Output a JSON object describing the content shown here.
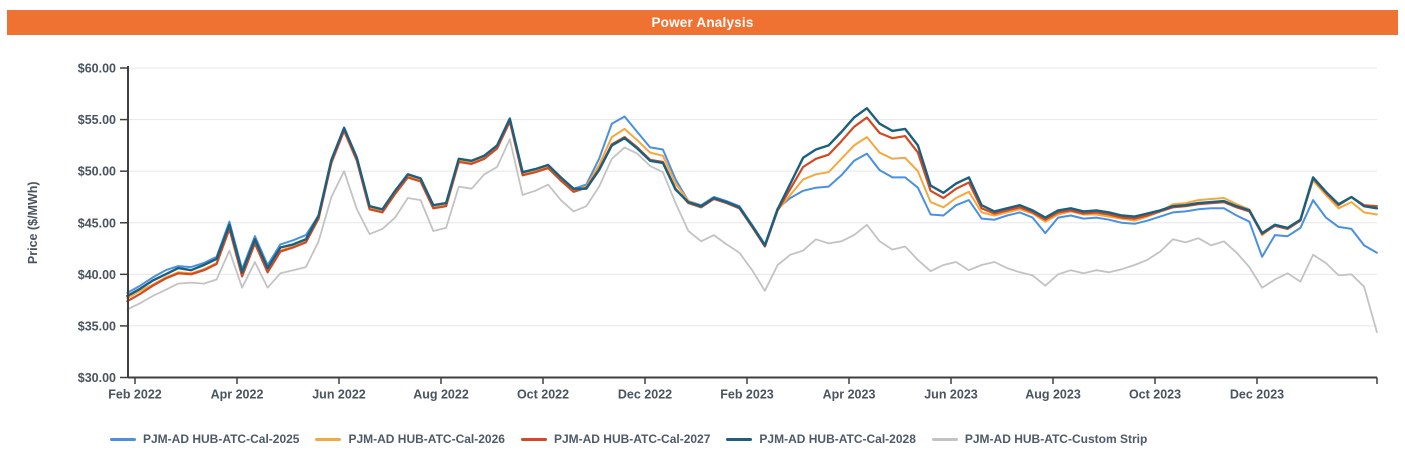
{
  "header": {
    "title": "Power Analysis",
    "background_color": "#ef7233",
    "text_color": "#ffffff"
  },
  "chart_data": {
    "type": "line",
    "title": "Power Analysis",
    "xlabel": "",
    "ylabel": "Price ($/MWh)",
    "ylim": [
      30,
      60
    ],
    "grid": "horizontal",
    "legend_position": "bottom",
    "y_tick_values": [
      60,
      55,
      50,
      45,
      40,
      35,
      30
    ],
    "y_tick_labels": [
      "$60.00",
      "$55.00",
      "$50.00",
      "$45.00",
      "$40.00",
      "$35.00",
      "$30.00"
    ],
    "x_tick_labels": [
      "Feb 2022",
      "Apr 2022",
      "Jun 2022",
      "Aug 2022",
      "Oct 2022",
      "Dec 2022",
      "Feb 2023",
      "Apr 2023",
      "Jun 2023",
      "Aug 2023",
      "Oct 2023",
      "Dec 2023"
    ],
    "x_tick_months": [
      0,
      2,
      4,
      6,
      8,
      10,
      12,
      14,
      16,
      18,
      20,
      22
    ],
    "x_start_month": -0.15,
    "x_step_months": 0.25,
    "x_end_month": 24.35,
    "colors": {
      "axis": "#3f3f3f",
      "gridline": "#e7e7e7",
      "tick_label": "#49545f",
      "axis_title": "#49545f"
    },
    "series": [
      {
        "name": "PJM-AD HUB-ATC-Cal-2025",
        "color": "#4a90e2",
        "width": 2,
        "values": [
          38.2,
          38.9,
          39.7,
          40.4,
          40.8,
          40.7,
          41.1,
          41.7,
          45.1,
          40.5,
          43.7,
          40.9,
          42.9,
          43.3,
          43.8,
          45.7,
          51.1,
          54.1,
          51.2,
          46.6,
          46.3,
          48.1,
          49.7,
          49.3,
          46.7,
          46.9,
          51.2,
          51.0,
          51.5,
          52.5,
          55.1,
          49.9,
          50.2,
          50.6,
          49.4,
          48.3,
          48.7,
          51.2,
          54.6,
          55.3,
          53.8,
          52.3,
          52.1,
          49.2,
          47.1,
          46.7,
          47.5,
          47.1,
          46.6,
          44.8,
          42.9,
          46.4,
          47.4,
          48.1,
          48.4,
          48.5,
          49.6,
          51.0,
          51.7,
          50.1,
          49.4,
          49.4,
          48.4,
          45.8,
          45.7,
          46.7,
          47.2,
          45.4,
          45.3,
          45.7,
          46.0,
          45.5,
          44.0,
          45.5,
          45.7,
          45.4,
          45.5,
          45.3,
          45.0,
          44.9,
          45.2,
          45.6,
          46.0,
          46.1,
          46.3,
          46.4,
          46.4,
          45.7,
          45.1,
          41.7,
          43.8,
          43.7,
          44.5,
          47.2,
          45.5,
          44.6,
          44.4,
          42.8,
          42.1
        ]
      },
      {
        "name": "PJM-AD HUB-ATC-Cal-2026",
        "color": "#f5a83e",
        "width": 2,
        "values": [
          37.7,
          38.4,
          39.0,
          39.7,
          40.2,
          40.1,
          40.5,
          41.1,
          44.5,
          39.9,
          43.1,
          40.3,
          42.3,
          42.7,
          43.2,
          45.5,
          50.9,
          54.0,
          51.1,
          46.4,
          46.1,
          47.9,
          49.5,
          49.1,
          46.5,
          46.7,
          51.0,
          50.8,
          51.3,
          52.3,
          54.9,
          49.7,
          50.0,
          50.4,
          49.2,
          48.1,
          48.5,
          50.6,
          53.3,
          54.1,
          53.0,
          51.8,
          51.5,
          48.8,
          47.1,
          46.6,
          47.4,
          47.0,
          46.5,
          44.7,
          42.8,
          46.2,
          47.7,
          49.2,
          49.7,
          49.9,
          51.2,
          52.5,
          53.3,
          51.8,
          51.2,
          51.3,
          50.0,
          47.0,
          46.5,
          47.4,
          48.0,
          46.0,
          45.7,
          46.0,
          46.3,
          45.9,
          45.1,
          45.8,
          46.1,
          45.8,
          45.8,
          45.6,
          45.4,
          45.2,
          45.6,
          46.1,
          46.8,
          46.9,
          47.2,
          47.3,
          47.4,
          46.8,
          46.3,
          43.8,
          44.8,
          44.5,
          45.3,
          49.1,
          47.7,
          46.4,
          47.0,
          46.0,
          45.8
        ]
      },
      {
        "name": "PJM-AD HUB-ATC-Cal-2027",
        "color": "#d24a21",
        "width": 2.2,
        "values": [
          37.4,
          38.1,
          38.9,
          39.6,
          40.1,
          40.0,
          40.4,
          41.0,
          44.4,
          39.8,
          43.0,
          40.2,
          42.2,
          42.6,
          43.1,
          45.4,
          50.8,
          53.9,
          51.0,
          46.3,
          46.0,
          47.8,
          49.4,
          49.0,
          46.4,
          46.6,
          50.9,
          50.7,
          51.2,
          52.2,
          54.8,
          49.6,
          49.9,
          50.3,
          49.1,
          48.0,
          48.4,
          50.2,
          52.6,
          53.3,
          52.3,
          51.1,
          50.9,
          48.3,
          46.9,
          46.5,
          47.3,
          46.9,
          46.4,
          44.6,
          42.7,
          46.2,
          48.3,
          50.4,
          51.2,
          51.6,
          52.9,
          54.3,
          55.2,
          53.7,
          53.2,
          53.4,
          51.8,
          48.1,
          47.4,
          48.3,
          48.9,
          46.4,
          45.9,
          46.2,
          46.5,
          46.0,
          45.3,
          46.0,
          46.2,
          45.9,
          46.0,
          45.8,
          45.5,
          45.4,
          45.7,
          46.1,
          46.5,
          46.6,
          46.8,
          46.9,
          47.0,
          46.5,
          46.1,
          43.9,
          44.7,
          44.4,
          45.2,
          49.3,
          47.9,
          46.7,
          47.5,
          46.7,
          46.6
        ]
      },
      {
        "name": "PJM-AD HUB-ATC-Cal-2028",
        "color": "#1a607f",
        "width": 2.4,
        "values": [
          37.9,
          38.6,
          39.4,
          40.0,
          40.6,
          40.4,
          40.9,
          41.5,
          44.8,
          40.2,
          43.4,
          40.6,
          42.6,
          42.9,
          43.4,
          45.7,
          51.1,
          54.2,
          51.3,
          46.6,
          46.3,
          48.1,
          49.7,
          49.3,
          46.7,
          46.9,
          51.2,
          51.0,
          51.5,
          52.5,
          55.1,
          49.9,
          50.2,
          50.6,
          49.4,
          48.3,
          48.3,
          50.1,
          52.5,
          53.2,
          52.2,
          51.0,
          50.8,
          48.2,
          47.0,
          46.6,
          47.4,
          47.0,
          46.5,
          44.7,
          42.8,
          46.3,
          48.8,
          51.3,
          52.1,
          52.5,
          53.8,
          55.2,
          56.1,
          54.6,
          53.9,
          54.1,
          52.5,
          48.6,
          47.9,
          48.8,
          49.4,
          46.7,
          46.1,
          46.4,
          46.7,
          46.2,
          45.5,
          46.2,
          46.4,
          46.1,
          46.2,
          46.0,
          45.7,
          45.6,
          45.9,
          46.2,
          46.6,
          46.7,
          46.9,
          47.0,
          47.1,
          46.6,
          46.2,
          44.0,
          44.8,
          44.5,
          45.3,
          49.4,
          48.0,
          46.8,
          47.5,
          46.6,
          46.4
        ]
      },
      {
        "name": "PJM-AD HUB-ATC-Custom Strip",
        "color": "#c3c3c3",
        "width": 1.8,
        "values": [
          36.6,
          37.2,
          37.9,
          38.5,
          39.1,
          39.2,
          39.1,
          39.5,
          42.3,
          38.7,
          41.2,
          38.7,
          40.1,
          40.4,
          40.7,
          43.2,
          47.5,
          50.0,
          46.3,
          43.9,
          44.4,
          45.5,
          47.4,
          47.2,
          44.2,
          44.5,
          48.5,
          48.3,
          49.7,
          50.4,
          53.1,
          47.7,
          48.1,
          48.7,
          47.2,
          46.1,
          46.6,
          48.5,
          51.2,
          52.3,
          51.7,
          50.5,
          49.9,
          46.9,
          44.2,
          43.2,
          43.8,
          42.9,
          42.1,
          40.4,
          38.4,
          40.9,
          41.9,
          42.3,
          43.4,
          43.0,
          43.2,
          43.8,
          44.8,
          43.2,
          42.4,
          42.7,
          41.4,
          40.3,
          40.9,
          41.2,
          40.4,
          40.9,
          41.2,
          40.6,
          40.2,
          39.9,
          38.9,
          40.0,
          40.4,
          40.1,
          40.4,
          40.2,
          40.5,
          40.9,
          41.4,
          42.2,
          43.4,
          43.1,
          43.5,
          42.8,
          43.2,
          42.1,
          40.7,
          38.7,
          39.5,
          40.1,
          39.3,
          41.9,
          41.1,
          39.9,
          40.0,
          38.8,
          34.4
        ]
      }
    ],
    "draw_order": [
      4,
      0,
      1,
      2,
      3
    ]
  }
}
